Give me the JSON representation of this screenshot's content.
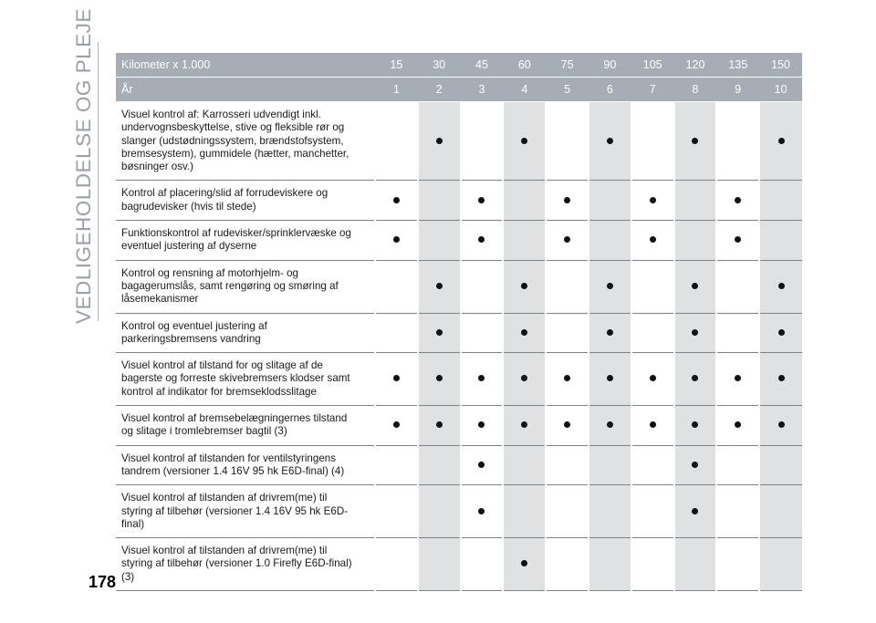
{
  "section_title": "VEDLIGEHOLDELSE OG PLEJE",
  "page_number": "178",
  "table": {
    "header_km_label": "Kilometer x 1.000",
    "header_km_values": [
      "15",
      "30",
      "45",
      "60",
      "75",
      "90",
      "105",
      "120",
      "135",
      "150"
    ],
    "header_year_label": "År",
    "header_year_values": [
      "1",
      "2",
      "3",
      "4",
      "5",
      "6",
      "7",
      "8",
      "9",
      "10"
    ],
    "rows": [
      {
        "text": "Visuel kontrol af: Karrosseri udvendigt inkl. undervognsbeskyttelse, stive og fleksible rør og slanger (udstødningssystem, brændstofsystem, bremsesystem), gummidele (hætter, manchetter, bøsninger osv.)",
        "marks": [
          false,
          true,
          false,
          true,
          false,
          true,
          false,
          true,
          false,
          true
        ]
      },
      {
        "text": "Kontrol af placering/slid af forrudeviskere og bagrudevisker (hvis til stede)",
        "marks": [
          true,
          false,
          true,
          false,
          true,
          false,
          true,
          false,
          true,
          false
        ]
      },
      {
        "text": "Funktionskontrol af rudevisker/sprinklervæske og eventuel justering af dyserne",
        "marks": [
          true,
          false,
          true,
          false,
          true,
          false,
          true,
          false,
          true,
          false
        ]
      },
      {
        "text": "Kontrol og rensning af motorhjelm- og bagagerumslås, samt rengøring og smøring af låsemekanismer",
        "marks": [
          false,
          true,
          false,
          true,
          false,
          true,
          false,
          true,
          false,
          true
        ]
      },
      {
        "text": "Kontrol og eventuel justering af parkeringsbremsens vandring",
        "marks": [
          false,
          true,
          false,
          true,
          false,
          true,
          false,
          true,
          false,
          true
        ]
      },
      {
        "text": "Visuel kontrol af tilstand for og slitage af de bagerste og forreste skivebremsers klodser samt kontrol af indikator for bremseklodsslitage",
        "marks": [
          true,
          true,
          true,
          true,
          true,
          true,
          true,
          true,
          true,
          true
        ]
      },
      {
        "text": "Visuel kontrol af bremsebelægningernes tilstand og slitage i tromlebremser bagtil (3)",
        "marks": [
          true,
          true,
          true,
          true,
          true,
          true,
          true,
          true,
          true,
          true
        ]
      },
      {
        "text": "Visuel kontrol af tilstanden for ventilstyringens tandrem (versioner 1.4 16V 95 hk E6D-final) (4)",
        "marks": [
          false,
          false,
          true,
          false,
          false,
          false,
          false,
          true,
          false,
          false
        ]
      },
      {
        "text": "Visuel kontrol af tilstanden af drivrem(me) til styring af tilbehør (versioner 1.4 16V 95 hk E6D-final)",
        "marks": [
          false,
          false,
          true,
          false,
          false,
          false,
          false,
          true,
          false,
          false
        ]
      },
      {
        "text": "Visuel kontrol af tilstanden af drivrem(me) til styring af tilbehør (versioner 1.0 Firefly E6D-final) (3)",
        "marks": [
          false,
          false,
          false,
          true,
          false,
          false,
          false,
          false,
          false,
          false
        ]
      }
    ]
  }
}
